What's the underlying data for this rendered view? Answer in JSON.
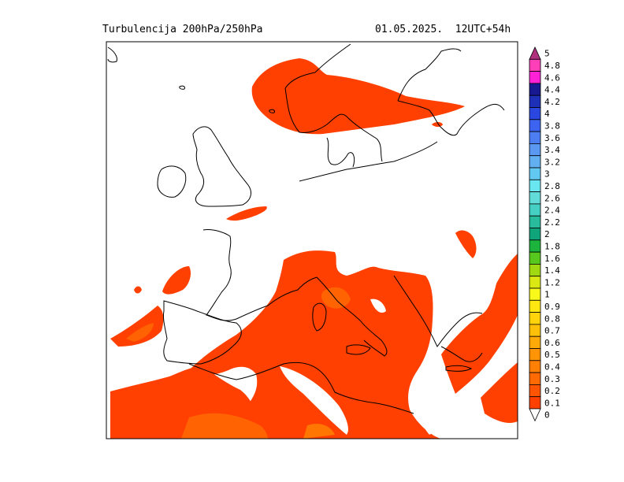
{
  "header": {
    "title": "Turbulencija 200hPa/250hPa",
    "datetime": "01.05.2025.  12UTC+54h"
  },
  "colorbar": {
    "levels": [
      {
        "label": "5",
        "color": "#b0307e"
      },
      {
        "label": "4.8",
        "color": "#ff3fb8"
      },
      {
        "label": "4.6",
        "color": "#ff21d6"
      },
      {
        "label": "4.4",
        "color": "#181890"
      },
      {
        "label": "4.2",
        "color": "#1e2fb8"
      },
      {
        "label": "4",
        "color": "#2a48e0"
      },
      {
        "label": "3.8",
        "color": "#3d64f0"
      },
      {
        "label": "3.6",
        "color": "#4c7ef2"
      },
      {
        "label": "3.4",
        "color": "#5a98f2"
      },
      {
        "label": "3.2",
        "color": "#62b0f2"
      },
      {
        "label": "3",
        "color": "#62c8f2"
      },
      {
        "label": "2.8",
        "color": "#6ae6f0"
      },
      {
        "label": "2.6",
        "color": "#62dcd8"
      },
      {
        "label": "2.4",
        "color": "#46d0c4"
      },
      {
        "label": "2.2",
        "color": "#28bc9c"
      },
      {
        "label": "2",
        "color": "#10a47a"
      },
      {
        "label": "1.8",
        "color": "#1cb43c"
      },
      {
        "label": "1.6",
        "color": "#56c81e"
      },
      {
        "label": "1.4",
        "color": "#a0d812"
      },
      {
        "label": "1.2",
        "color": "#dce814"
      },
      {
        "label": "1",
        "color": "#f8f81a"
      },
      {
        "label": "0.9",
        "color": "#ffe812"
      },
      {
        "label": "0.8",
        "color": "#ffd40c"
      },
      {
        "label": "0.7",
        "color": "#ffc00a"
      },
      {
        "label": "0.6",
        "color": "#ffaa08"
      },
      {
        "label": "0.5",
        "color": "#ff9406"
      },
      {
        "label": "0.4",
        "color": "#ff8004"
      },
      {
        "label": "0.3",
        "color": "#ff6a02"
      },
      {
        "label": "0.2",
        "color": "#ff5401"
      },
      {
        "label": "0.1",
        "color": "#ff4000"
      },
      {
        "label": "0",
        "color": "#ffffff"
      }
    ]
  }
}
